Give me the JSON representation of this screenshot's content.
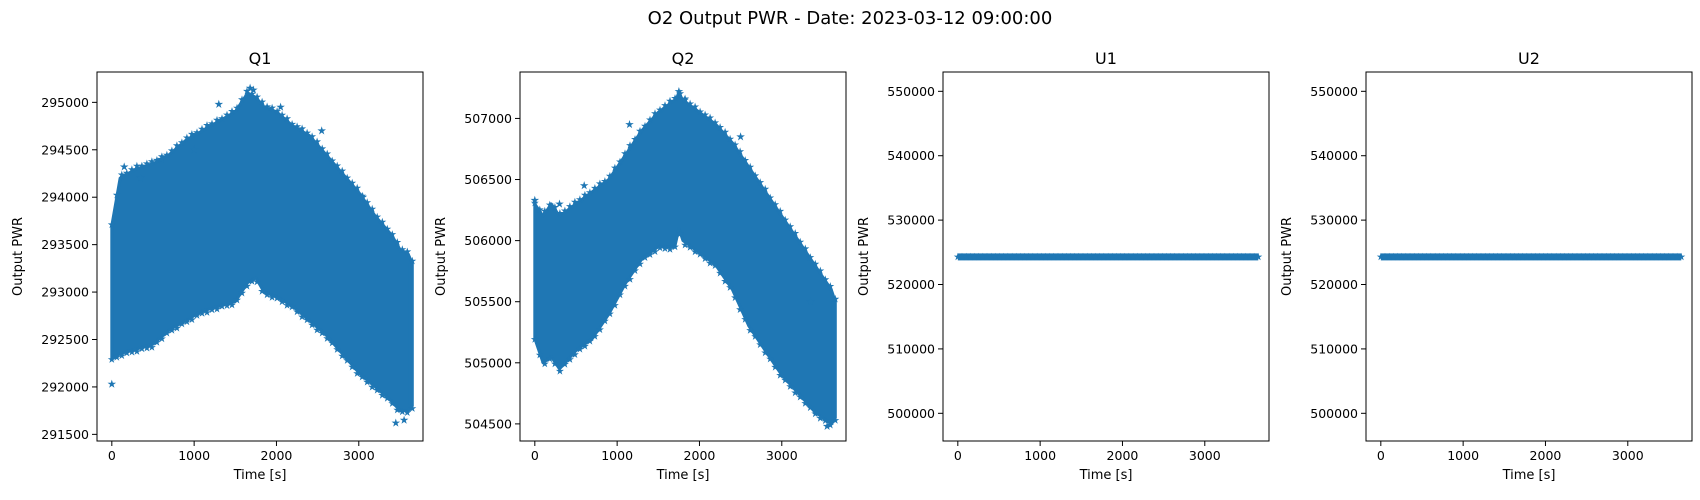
{
  "figure_title": "O2 Output PWR - Date: 2023-03-12 09:00:00",
  "colors": {
    "series": "#1f77b4",
    "axes": "#000000",
    "background": "#ffffff"
  },
  "chart_data": [
    {
      "type": "scatter",
      "title": "Q1",
      "xlabel": "Time [s]",
      "ylabel": "Output PWR",
      "marker": "star",
      "xlim": [
        -180,
        3780
      ],
      "ylim": [
        291430,
        295320
      ],
      "xticks": [
        0,
        1000,
        2000,
        3000
      ],
      "xtick_labels": [
        "0",
        "1000",
        "2000",
        "3000"
      ],
      "yticks": [
        291500,
        292000,
        292500,
        293000,
        293500,
        294000,
        294500,
        295000
      ],
      "ytick_labels": [
        "291500",
        "292000",
        "292500",
        "293000",
        "293500",
        "294000",
        "294500",
        "295000"
      ],
      "envelope": {
        "x": [
          0,
          100,
          300,
          500,
          700,
          900,
          1100,
          1300,
          1500,
          1650,
          1750,
          1850,
          2000,
          2200,
          2400,
          2600,
          2800,
          3000,
          3200,
          3400,
          3500,
          3600,
          3650
        ],
        "upper": [
          293700,
          294200,
          294300,
          294350,
          294450,
          294600,
          294700,
          294800,
          294900,
          295100,
          295050,
          294950,
          294900,
          294750,
          294650,
          294450,
          294250,
          294050,
          293800,
          293600,
          293450,
          293400,
          293300
        ],
        "lower": [
          292300,
          292350,
          292400,
          292450,
          292600,
          292700,
          292800,
          292850,
          292900,
          293100,
          293150,
          293000,
          292950,
          292850,
          292700,
          292550,
          292350,
          292150,
          292000,
          291850,
          291750,
          291750,
          291800
        ]
      },
      "outliers": {
        "x": [
          0,
          150,
          350,
          600,
          1000,
          1300,
          1680,
          1720,
          2050,
          2550,
          3050,
          3450,
          3550
        ],
        "y": [
          292030,
          294320,
          294200,
          294400,
          294500,
          294980,
          295150,
          295130,
          294950,
          294700,
          294000,
          291620,
          291650
        ]
      }
    },
    {
      "type": "scatter",
      "title": "Q2",
      "xlabel": "Time [s]",
      "ylabel": "Output PWR",
      "marker": "star",
      "xlim": [
        -180,
        3780
      ],
      "ylim": [
        504360,
        507380
      ],
      "xticks": [
        0,
        1000,
        2000,
        3000
      ],
      "xtick_labels": [
        "0",
        "1000",
        "2000",
        "3000"
      ],
      "yticks": [
        504500,
        505000,
        505500,
        506000,
        506500,
        507000
      ],
      "ytick_labels": [
        "504500",
        "505000",
        "505500",
        "506000",
        "506500",
        "507000"
      ],
      "envelope": {
        "x": [
          0,
          100,
          200,
          300,
          500,
          700,
          900,
          1100,
          1300,
          1500,
          1700,
          1750,
          1800,
          2000,
          2200,
          2400,
          2600,
          2800,
          3000,
          3200,
          3400,
          3500,
          3600,
          3650
        ],
        "upper": [
          506300,
          506200,
          506300,
          506200,
          506300,
          506400,
          506500,
          506700,
          506900,
          507050,
          507150,
          507200,
          507150,
          507050,
          506950,
          506800,
          506600,
          506400,
          506200,
          506000,
          505800,
          505700,
          505600,
          505500
        ],
        "lower": [
          505200,
          505000,
          505050,
          504950,
          505100,
          505200,
          505400,
          505650,
          505850,
          505950,
          505950,
          506100,
          506000,
          505900,
          505800,
          505600,
          505300,
          505100,
          504900,
          504750,
          504600,
          504550,
          504500,
          504550
        ]
      },
      "outliers": {
        "x": [
          0,
          300,
          600,
          1150,
          1750,
          1820,
          2500,
          3350,
          3550
        ],
        "y": [
          506330,
          506300,
          506450,
          506950,
          507220,
          507150,
          506850,
          505500,
          504480
        ]
      }
    },
    {
      "type": "scatter",
      "title": "U1",
      "xlabel": "Time [s]",
      "ylabel": "Output PWR",
      "marker": "star",
      "xlim": [
        -180,
        3780
      ],
      "ylim": [
        495700,
        553000
      ],
      "xticks": [
        0,
        1000,
        2000,
        3000
      ],
      "xtick_labels": [
        "0",
        "1000",
        "2000",
        "3000"
      ],
      "yticks": [
        500000,
        510000,
        520000,
        530000,
        540000,
        550000
      ],
      "ytick_labels": [
        "500000",
        "510000",
        "520000",
        "530000",
        "540000",
        "550000"
      ],
      "constant": {
        "x": [
          0,
          3650
        ],
        "y": 524288
      }
    },
    {
      "type": "scatter",
      "title": "U2",
      "xlabel": "Time [s]",
      "ylabel": "Output PWR",
      "marker": "star",
      "xlim": [
        -180,
        3780
      ],
      "ylim": [
        495700,
        553000
      ],
      "xticks": [
        0,
        1000,
        2000,
        3000
      ],
      "xtick_labels": [
        "0",
        "1000",
        "2000",
        "3000"
      ],
      "yticks": [
        500000,
        510000,
        520000,
        530000,
        540000,
        550000
      ],
      "ytick_labels": [
        "500000",
        "510000",
        "520000",
        "530000",
        "540000",
        "550000"
      ],
      "constant": {
        "x": [
          0,
          3650
        ],
        "y": 524288
      }
    }
  ]
}
